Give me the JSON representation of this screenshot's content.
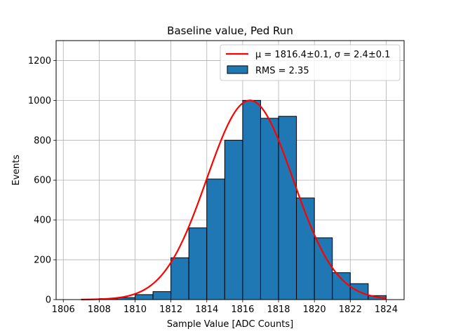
{
  "chart_data": {
    "type": "bar",
    "title": "Baseline value, Ped Run",
    "xlabel": "Sample Value [ADC Counts]",
    "ylabel": "Events",
    "xlim": [
      1805.6,
      1825.0
    ],
    "ylim": [
      0,
      1300
    ],
    "grid": true,
    "legend_position": "top-right",
    "x_ticks": [
      "1806",
      "1808",
      "1810",
      "1812",
      "1814",
      "1816",
      "1818",
      "1820",
      "1822",
      "1824"
    ],
    "y_ticks": [
      "0",
      "200",
      "400",
      "600",
      "800",
      "1000",
      "1200"
    ],
    "bin_edges": [
      1807.0,
      1808.0,
      1809.0,
      1810.0,
      1811.0,
      1812.0,
      1813.0,
      1814.0,
      1815.0,
      1816.0,
      1817.0,
      1818.0,
      1819.0,
      1820.0,
      1821.0,
      1822.0,
      1823.0,
      1824.0
    ],
    "series": [
      {
        "name": "RMS = 2.35",
        "kind": "histogram",
        "color": "#1f77b4",
        "edge_color": "#000000",
        "values": [
          1,
          5,
          10,
          25,
          40,
          210,
          360,
          605,
          800,
          1000,
          910,
          920,
          510,
          310,
          135,
          80,
          20
        ]
      },
      {
        "name": "μ = 1816.4±0.1, σ = 2.4±0.1",
        "kind": "gaussian-fit",
        "color": "#ff0000",
        "mu": 1816.4,
        "sigma": 2.4,
        "amplitude": 1000,
        "x_range": [
          1807.0,
          1824.0
        ]
      }
    ]
  }
}
